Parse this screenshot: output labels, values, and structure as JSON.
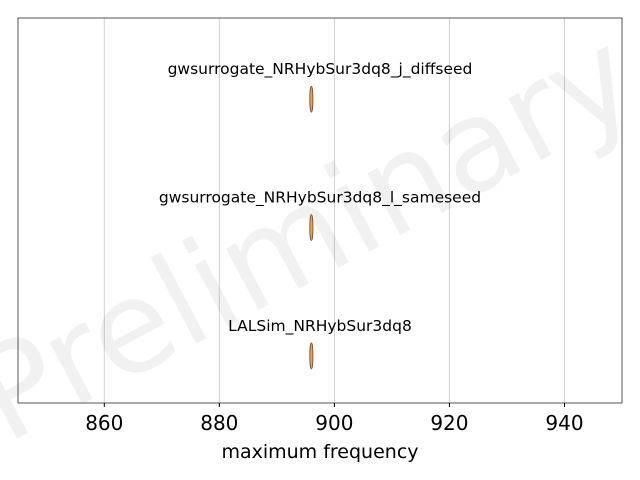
{
  "chart_data": {
    "type": "violin",
    "xlabel": "maximum frequency",
    "xlim": [
      845,
      950
    ],
    "xticks": [
      860,
      880,
      900,
      920,
      940
    ],
    "grid": "x",
    "watermark": "Preliminary",
    "series": [
      {
        "name": "gwsurrogate_NRHybSur3dq8_j_diffseed",
        "value": 896
      },
      {
        "name": "gwsurrogate_NRHybSur3dq8_l_sameseed",
        "value": 896
      },
      {
        "name": "LALSim_NRHybSur3dq8",
        "value": 896
      }
    ],
    "colors": {
      "violin_fill": "#e8a05a",
      "violin_edge": "#7a4a1e",
      "grid": "#d0d0d0",
      "frame": "#555555"
    }
  }
}
